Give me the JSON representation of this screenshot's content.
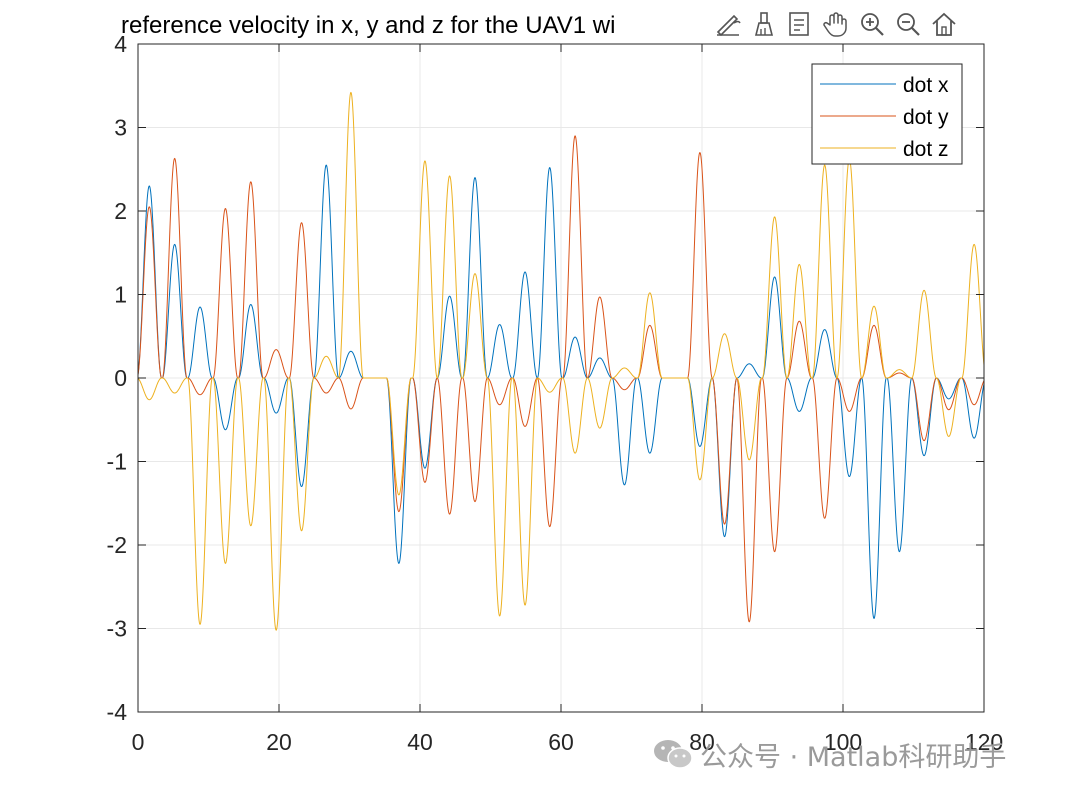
{
  "chart_data": {
    "type": "line",
    "title": "reference velocity in x, y and z for the UAV1 wi",
    "xlim": [
      0,
      120
    ],
    "ylim": [
      -4,
      4
    ],
    "xticks": [
      "0",
      "20",
      "40",
      "60",
      "80",
      "100",
      "120"
    ],
    "yticks": [
      "-4",
      "-3",
      "-2",
      "-1",
      "0",
      "1",
      "2",
      "3",
      "4"
    ],
    "grid": true,
    "legend_position": "top-right",
    "series": [
      {
        "name": "dot x",
        "color": "#0072BD",
        "pulses": [
          [
            1.6,
            2.3
          ],
          [
            5.2,
            1.6
          ],
          [
            8.8,
            0.85
          ],
          [
            12.4,
            -0.62
          ],
          [
            16.0,
            0.88
          ],
          [
            19.6,
            -0.42
          ],
          [
            23.2,
            -1.3
          ],
          [
            26.7,
            2.55
          ],
          [
            30.2,
            0.32
          ],
          [
            37.0,
            -2.22
          ],
          [
            40.7,
            -1.08
          ],
          [
            44.2,
            0.98
          ],
          [
            47.8,
            2.4
          ],
          [
            51.3,
            0.64
          ],
          [
            54.9,
            1.27
          ],
          [
            58.4,
            2.52
          ],
          [
            62.0,
            0.49
          ],
          [
            65.5,
            0.24
          ],
          [
            69.0,
            -1.28
          ],
          [
            72.6,
            -0.9
          ],
          [
            79.7,
            -0.82
          ],
          [
            83.2,
            -1.9
          ],
          [
            86.7,
            0.17
          ],
          [
            90.3,
            1.21
          ],
          [
            93.8,
            -0.4
          ],
          [
            97.4,
            0.58
          ],
          [
            100.9,
            -1.18
          ],
          [
            104.4,
            -2.88
          ],
          [
            108.0,
            -2.08
          ],
          [
            111.5,
            -0.93
          ],
          [
            115.0,
            -0.25
          ],
          [
            118.6,
            -0.72
          ]
        ]
      },
      {
        "name": "dot y",
        "color": "#D95319",
        "pulses": [
          [
            1.6,
            2.05
          ],
          [
            5.2,
            2.63
          ],
          [
            8.8,
            -0.2
          ],
          [
            12.4,
            2.03
          ],
          [
            16.0,
            2.35
          ],
          [
            19.6,
            0.34
          ],
          [
            23.2,
            1.86
          ],
          [
            26.7,
            -0.18
          ],
          [
            30.2,
            -0.37
          ],
          [
            37.0,
            -1.6
          ],
          [
            40.7,
            -1.25
          ],
          [
            44.2,
            -1.63
          ],
          [
            47.8,
            -1.48
          ],
          [
            51.3,
            -0.32
          ],
          [
            54.9,
            -0.58
          ],
          [
            58.4,
            -1.78
          ],
          [
            62.0,
            2.9
          ],
          [
            65.5,
            0.97
          ],
          [
            69.0,
            -0.14
          ],
          [
            72.6,
            0.63
          ],
          [
            79.7,
            2.7
          ],
          [
            83.2,
            -1.75
          ],
          [
            86.7,
            -2.92
          ],
          [
            90.3,
            -2.08
          ],
          [
            93.8,
            0.68
          ],
          [
            97.4,
            -1.68
          ],
          [
            100.9,
            -0.4
          ],
          [
            104.4,
            0.63
          ],
          [
            108.0,
            0.06
          ],
          [
            111.5,
            -0.75
          ],
          [
            115.0,
            -0.38
          ],
          [
            118.6,
            -0.32
          ]
        ]
      },
      {
        "name": "dot z",
        "color": "#EDB120",
        "pulses": [
          [
            1.6,
            -0.26
          ],
          [
            5.2,
            -0.18
          ],
          [
            8.8,
            -2.95
          ],
          [
            12.4,
            -2.22
          ],
          [
            16.0,
            -1.77
          ],
          [
            19.6,
            -3.02
          ],
          [
            23.2,
            -1.83
          ],
          [
            26.7,
            0.26
          ],
          [
            30.2,
            3.42
          ],
          [
            37.0,
            -1.4
          ],
          [
            40.7,
            2.6
          ],
          [
            44.2,
            2.42
          ],
          [
            47.8,
            1.25
          ],
          [
            51.3,
            -2.85
          ],
          [
            54.9,
            -2.72
          ],
          [
            58.4,
            -0.17
          ],
          [
            62.0,
            -0.9
          ],
          [
            65.5,
            -0.6
          ],
          [
            69.0,
            0.12
          ],
          [
            72.6,
            1.02
          ],
          [
            79.7,
            -1.22
          ],
          [
            83.2,
            0.53
          ],
          [
            86.7,
            -0.98
          ],
          [
            90.3,
            1.93
          ],
          [
            93.8,
            1.36
          ],
          [
            97.4,
            2.55
          ],
          [
            100.9,
            2.62
          ],
          [
            104.4,
            0.86
          ],
          [
            108.0,
            0.1
          ],
          [
            111.5,
            1.05
          ],
          [
            115.0,
            -0.7
          ],
          [
            118.6,
            1.6
          ]
        ]
      }
    ]
  },
  "toolbar": {
    "icons": [
      "edit-icon",
      "brush-icon",
      "data-tips-icon",
      "pan-icon",
      "zoom-in-icon",
      "zoom-out-icon",
      "home-icon"
    ]
  },
  "watermark": {
    "text": "公众号 · Matlab科研助手",
    "icon": "wechat-logo"
  }
}
